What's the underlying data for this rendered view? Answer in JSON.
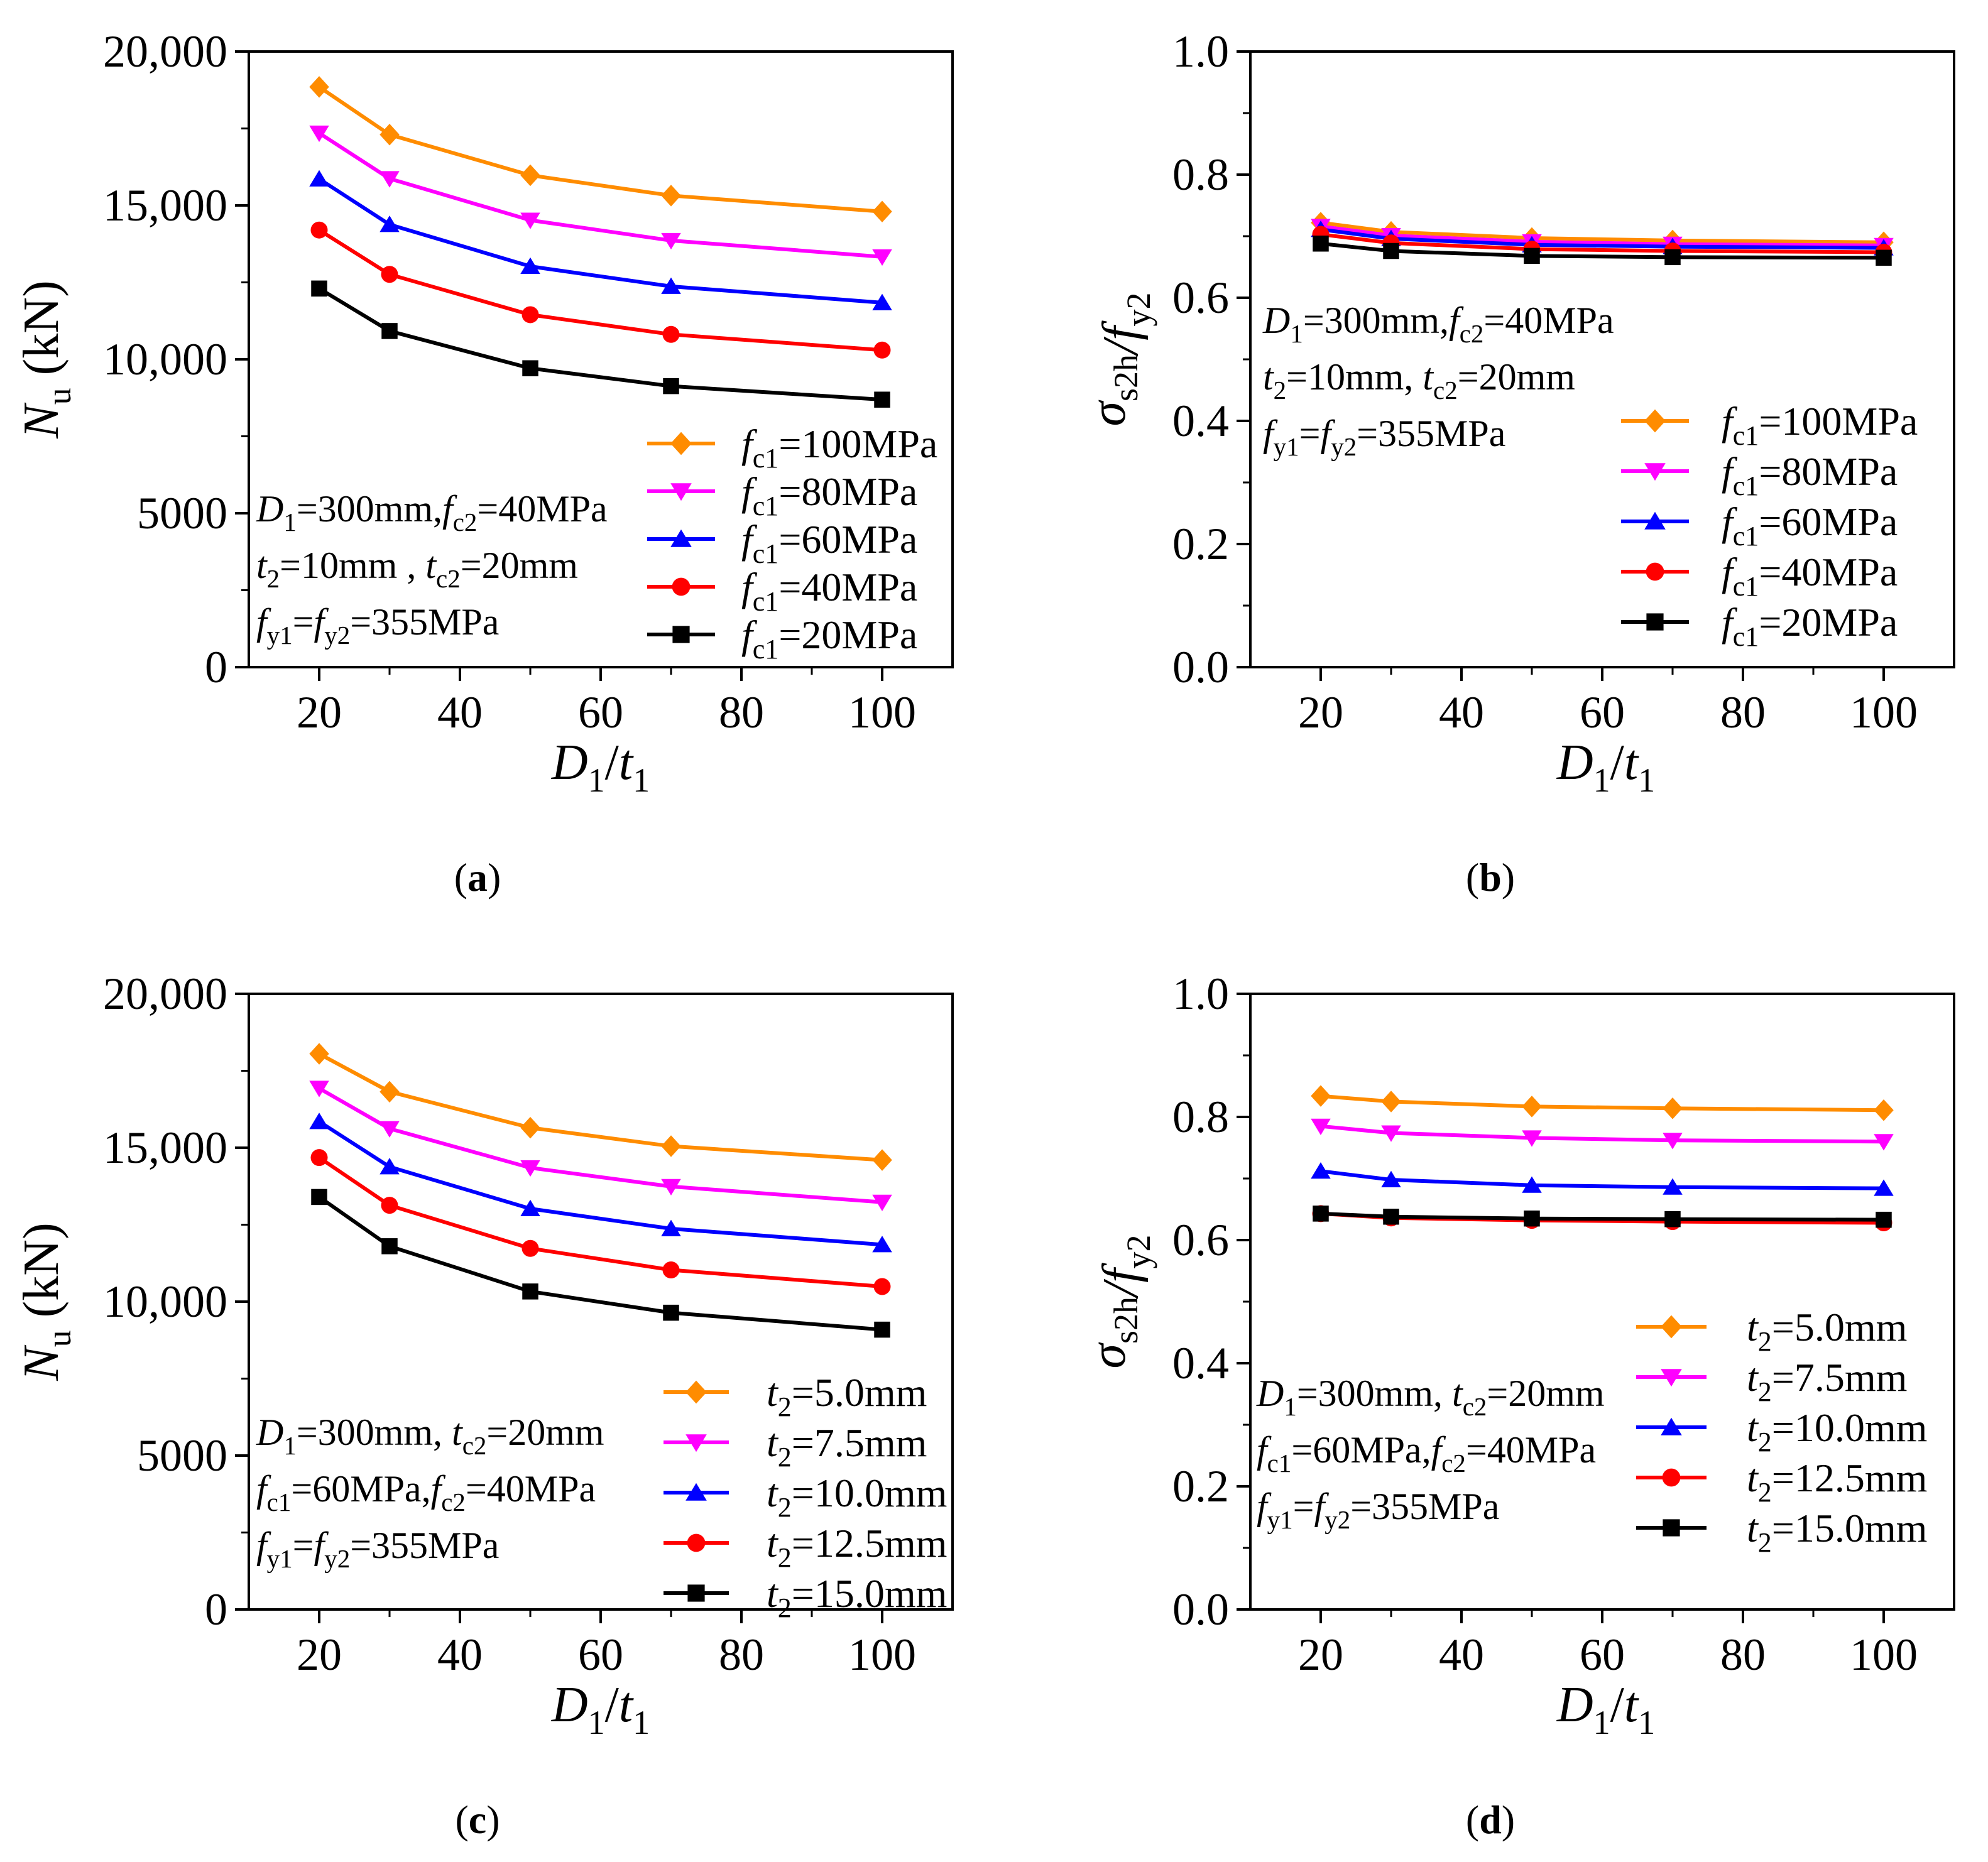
{
  "figure": {
    "panels": [
      {
        "id": "a",
        "caption": "a",
        "ylabel_main": "N",
        "ylabel_sub": "u",
        "ylabel_unit": " (kN)"
      },
      {
        "id": "b",
        "caption": "b",
        "ylabel_main": "σ",
        "ylabel_sub": "s2h",
        "ylabel_main2": "/f",
        "ylabel_sub2": "y2"
      },
      {
        "id": "c",
        "caption": "c",
        "ylabel_main": "N",
        "ylabel_sub": "u",
        "ylabel_unit": " (kN)"
      },
      {
        "id": "d",
        "caption": "d",
        "ylabel_main": "σ",
        "ylabel_sub": "s2h",
        "ylabel_main2": "/f",
        "ylabel_sub2": "y2"
      }
    ]
  },
  "chart_data": [
    {
      "panel": "a",
      "type": "line",
      "x": [
        20,
        30,
        50,
        70,
        100
      ],
      "xlim": [
        10,
        110
      ],
      "ylim": [
        0,
        20000
      ],
      "xticks": [
        20,
        40,
        60,
        80,
        100
      ],
      "xtick_labels": [
        "20",
        "40",
        "60",
        "80",
        "100"
      ],
      "yticks": [
        0,
        5000,
        10000,
        15000,
        20000
      ],
      "ytick_labels": [
        "0",
        "5000",
        "10,000",
        "15,000",
        "20,000"
      ],
      "xlabel": "D1/t1",
      "ylabel": "Nu (kN)",
      "legend_position": "bottom-right",
      "legend_prefix": "f",
      "legend_sub": "c1",
      "series": [
        {
          "name": "fc1=100MPa",
          "label_value": "=100MPa",
          "marker": "diamond",
          "color": "#FF8C00",
          "values": [
            18850,
            17300,
            15980,
            15320,
            14800
          ]
        },
        {
          "name": "fc1=80MPa",
          "label_value": "=80MPa",
          "marker": "triangle-down",
          "color": "#FF00FF",
          "values": [
            17350,
            15870,
            14520,
            13860,
            13330
          ]
        },
        {
          "name": "fc1=60MPa",
          "label_value": "=60MPa",
          "marker": "triangle-up",
          "color": "#0000FF",
          "values": [
            15860,
            14380,
            13020,
            12370,
            11840
          ]
        },
        {
          "name": "fc1=40MPa",
          "label_value": "=40MPa",
          "marker": "circle",
          "color": "#FF0000",
          "values": [
            14200,
            12760,
            11450,
            10810,
            10300
          ]
        },
        {
          "name": "fc1=20MPa",
          "label_value": "=20MPa",
          "marker": "square",
          "color": "#000000",
          "values": [
            12300,
            10920,
            9710,
            9130,
            8690
          ]
        }
      ],
      "note": [
        {
          "segs": [
            [
              "i",
              "D"
            ],
            [
              "sub",
              "1"
            ],
            [
              "r",
              "=300mm,"
            ],
            [
              "i",
              "f"
            ],
            [
              "sub",
              "c2"
            ],
            [
              "r",
              "=40MPa"
            ]
          ]
        },
        {
          "segs": [
            [
              "i",
              "t"
            ],
            [
              "sub",
              "2"
            ],
            [
              "r",
              "=10mm , "
            ],
            [
              "i",
              "t"
            ],
            [
              "sub",
              "c2"
            ],
            [
              "r",
              "=20mm"
            ]
          ]
        },
        {
          "segs": [
            [
              "i",
              "f"
            ],
            [
              "sub",
              "y1"
            ],
            [
              "r",
              "="
            ],
            [
              "i",
              "f"
            ],
            [
              "sub",
              "y2"
            ],
            [
              "r",
              "=355MPa"
            ]
          ]
        }
      ]
    },
    {
      "panel": "b",
      "type": "line",
      "x": [
        20,
        30,
        50,
        70,
        100
      ],
      "xlim": [
        10,
        110
      ],
      "ylim": [
        0,
        1.0
      ],
      "xticks": [
        20,
        40,
        60,
        80,
        100
      ],
      "xtick_labels": [
        "20",
        "40",
        "60",
        "80",
        "100"
      ],
      "yticks": [
        0,
        0.2,
        0.4,
        0.6,
        0.8,
        1.0
      ],
      "ytick_labels": [
        "0.0",
        "0.2",
        "0.4",
        "0.6",
        "0.8",
        "1.0"
      ],
      "xlabel": "D1/t1",
      "ylabel": "σs2h/fy2",
      "legend_position": "bottom-right",
      "legend_prefix": "f",
      "legend_sub": "c1",
      "series": [
        {
          "name": "fc1=100MPa",
          "label_value": "=100MPa",
          "marker": "diamond",
          "color": "#FF8C00",
          "values": [
            0.722,
            0.707,
            0.697,
            0.693,
            0.69
          ]
        },
        {
          "name": "fc1=80MPa",
          "label_value": "=80MPa",
          "marker": "triangle-down",
          "color": "#FF00FF",
          "values": [
            0.716,
            0.701,
            0.691,
            0.687,
            0.685
          ]
        },
        {
          "name": "fc1=60MPa",
          "label_value": "=60MPa",
          "marker": "triangle-up",
          "color": "#0000FF",
          "values": [
            0.711,
            0.696,
            0.686,
            0.683,
            0.681
          ]
        },
        {
          "name": "fc1=40MPa",
          "label_value": "=40MPa",
          "marker": "circle",
          "color": "#FF0000",
          "values": [
            0.703,
            0.689,
            0.679,
            0.676,
            0.674
          ]
        },
        {
          "name": "fc1=20MPa",
          "label_value": "=20MPa",
          "marker": "square",
          "color": "#000000",
          "values": [
            0.688,
            0.676,
            0.668,
            0.666,
            0.665
          ]
        }
      ],
      "note": [
        {
          "segs": [
            [
              "i",
              "D"
            ],
            [
              "sub",
              "1"
            ],
            [
              "r",
              "=300mm,"
            ],
            [
              "i",
              "f"
            ],
            [
              "sub",
              "c2"
            ],
            [
              "r",
              "=40MPa"
            ]
          ]
        },
        {
          "segs": [
            [
              "i",
              "t"
            ],
            [
              "sub",
              "2"
            ],
            [
              "r",
              "=10mm, "
            ],
            [
              "i",
              "t"
            ],
            [
              "sub",
              "c2"
            ],
            [
              "r",
              "=20mm"
            ]
          ]
        },
        {
          "segs": [
            [
              "i",
              "f"
            ],
            [
              "sub",
              "y1"
            ],
            [
              "r",
              "="
            ],
            [
              "i",
              "f"
            ],
            [
              "sub",
              "y2"
            ],
            [
              "r",
              "=355MPa"
            ]
          ]
        }
      ]
    },
    {
      "panel": "c",
      "type": "line",
      "x": [
        20,
        30,
        50,
        70,
        100
      ],
      "xlim": [
        10,
        110
      ],
      "ylim": [
        0,
        20000
      ],
      "xticks": [
        20,
        40,
        60,
        80,
        100
      ],
      "xtick_labels": [
        "20",
        "40",
        "60",
        "80",
        "100"
      ],
      "yticks": [
        0,
        5000,
        10000,
        15000,
        20000
      ],
      "ytick_labels": [
        "0",
        "5000",
        "10,000",
        "15,000",
        "20,000"
      ],
      "xlabel": "D1/t1",
      "ylabel": "Nu (kN)",
      "legend_position": "bottom-right",
      "legend_prefix": "t",
      "legend_sub": "2",
      "series": [
        {
          "name": "t2=5.0mm",
          "label_value": "=5.0mm",
          "marker": "diamond",
          "color": "#FF8C00",
          "values": [
            18050,
            16820,
            15650,
            15050,
            14600
          ]
        },
        {
          "name": "t2=7.5mm",
          "label_value": "=7.5mm",
          "marker": "triangle-down",
          "color": "#FF00FF",
          "values": [
            16930,
            15620,
            14350,
            13740,
            13230
          ]
        },
        {
          "name": "t2=10.0mm",
          "label_value": "=10.0mm",
          "marker": "triangle-up",
          "color": "#0000FF",
          "values": [
            15850,
            14380,
            13020,
            12370,
            11850
          ]
        },
        {
          "name": "t2=12.5mm",
          "label_value": "=12.5mm",
          "marker": "circle",
          "color": "#FF0000",
          "values": [
            14680,
            13130,
            11730,
            11030,
            10490
          ]
        },
        {
          "name": "t2=15.0mm",
          "label_value": "=15.0mm",
          "marker": "square",
          "color": "#000000",
          "values": [
            13400,
            11800,
            10330,
            9640,
            9090
          ]
        }
      ],
      "note": [
        {
          "segs": [
            [
              "i",
              "D"
            ],
            [
              "sub",
              "1"
            ],
            [
              "r",
              "=300mm, "
            ],
            [
              "i",
              "t"
            ],
            [
              "sub",
              "c2"
            ],
            [
              "r",
              "=20mm"
            ]
          ]
        },
        {
          "segs": [
            [
              "i",
              "f"
            ],
            [
              "sub",
              "c1"
            ],
            [
              "r",
              "=60MPa,"
            ],
            [
              "i",
              "f"
            ],
            [
              "sub",
              "c2"
            ],
            [
              "r",
              "=40MPa"
            ]
          ]
        },
        {
          "segs": [
            [
              "i",
              "f"
            ],
            [
              "sub",
              "y1"
            ],
            [
              "r",
              "="
            ],
            [
              "i",
              "f"
            ],
            [
              "sub",
              "y2"
            ],
            [
              "r",
              "=355MPa"
            ]
          ]
        }
      ]
    },
    {
      "panel": "d",
      "type": "line",
      "x": [
        20,
        30,
        50,
        70,
        100
      ],
      "xlim": [
        10,
        110
      ],
      "ylim": [
        0,
        1.0
      ],
      "xticks": [
        20,
        40,
        60,
        80,
        100
      ],
      "xtick_labels": [
        "20",
        "40",
        "60",
        "80",
        "100"
      ],
      "yticks": [
        0,
        0.2,
        0.4,
        0.6,
        0.8,
        1.0
      ],
      "ytick_labels": [
        "0.0",
        "0.2",
        "0.4",
        "0.6",
        "0.8",
        "1.0"
      ],
      "xlabel": "D1/t1",
      "ylabel": "σs2h/fy2",
      "legend_position": "right",
      "legend_prefix": "t",
      "legend_sub": "2",
      "series": [
        {
          "name": "t2=5.0mm",
          "label_value": "=5.0mm",
          "marker": "diamond",
          "color": "#FF8C00",
          "values": [
            0.834,
            0.825,
            0.817,
            0.814,
            0.811
          ]
        },
        {
          "name": "t2=7.5mm",
          "label_value": "=7.5mm",
          "marker": "triangle-down",
          "color": "#FF00FF",
          "values": [
            0.785,
            0.774,
            0.766,
            0.762,
            0.76
          ]
        },
        {
          "name": "t2=10.0mm",
          "label_value": "=10.0mm",
          "marker": "triangle-up",
          "color": "#0000FF",
          "values": [
            0.712,
            0.698,
            0.689,
            0.686,
            0.684
          ]
        },
        {
          "name": "t2=12.5mm",
          "label_value": "=12.5mm",
          "marker": "circle",
          "color": "#FF0000",
          "values": [
            0.643,
            0.636,
            0.632,
            0.63,
            0.628
          ]
        },
        {
          "name": "t2=15.0mm",
          "label_value": "=15.0mm",
          "marker": "square",
          "color": "#000000",
          "values": [
            0.643,
            0.638,
            0.635,
            0.634,
            0.633
          ]
        }
      ],
      "note": [
        {
          "segs": [
            [
              "i",
              "D"
            ],
            [
              "sub",
              "1"
            ],
            [
              "r",
              "=300mm, "
            ],
            [
              "i",
              "t"
            ],
            [
              "sub",
              "c2"
            ],
            [
              "r",
              "=20mm"
            ]
          ]
        },
        {
          "segs": [
            [
              "i",
              "f"
            ],
            [
              "sub",
              "c1"
            ],
            [
              "r",
              "=60MPa,"
            ],
            [
              "i",
              "f"
            ],
            [
              "sub",
              "c2"
            ],
            [
              "r",
              "=40MPa"
            ]
          ]
        },
        {
          "segs": [
            [
              "i",
              "f"
            ],
            [
              "sub",
              "y1"
            ],
            [
              "r",
              "="
            ],
            [
              "i",
              "f"
            ],
            [
              "sub",
              "y2"
            ],
            [
              "r",
              "=355MPa"
            ]
          ]
        }
      ]
    }
  ]
}
